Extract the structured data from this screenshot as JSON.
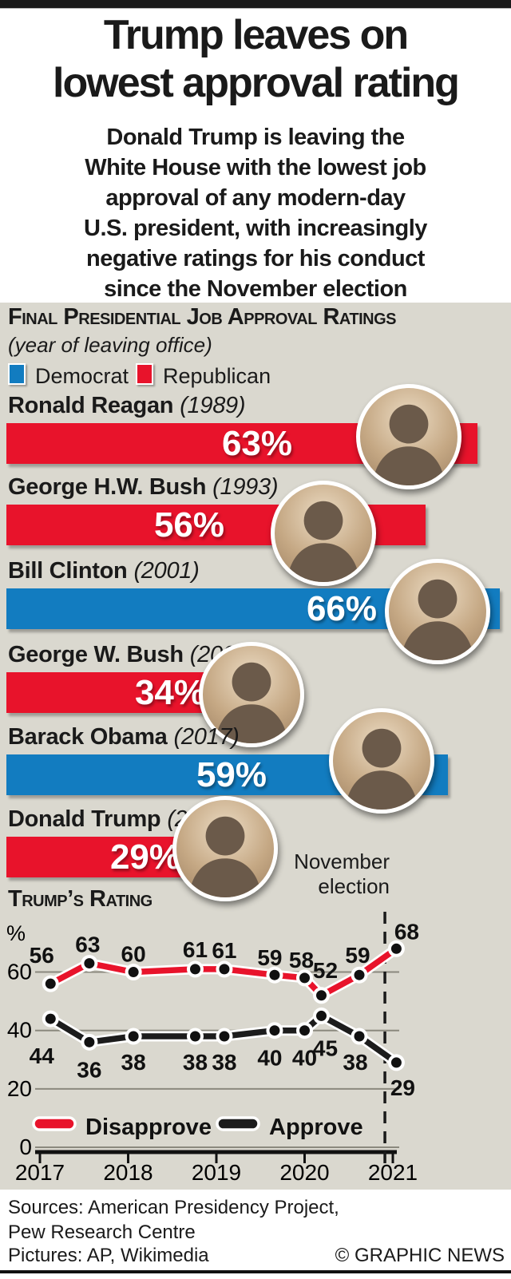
{
  "page": {
    "background": "#ffffff",
    "panel_bg": "#dad8cf",
    "accent_red": "#e8132b",
    "accent_blue": "#127cc0"
  },
  "masthead": {
    "title": "Trump leaves on\nlowest approval rating",
    "intro": "Donald Trump is leaving the\nWhite House with the lowest job\napproval of any modern-day\nU.S. president, with increasingly\nnegative ratings for his conduct\nsince the November election"
  },
  "panel": {
    "heading": "Final Presidential Job Approval Ratings",
    "subheading": "(year of leaving office)",
    "legend": [
      {
        "label": "Democrat",
        "color": "#127cc0"
      },
      {
        "label": "Republican",
        "color": "#e8132b"
      }
    ],
    "presidents": [
      {
        "name": "Ronald Reagan",
        "year": "(1989)",
        "party": "republican",
        "value": 63,
        "pct_label": "63%"
      },
      {
        "name": "George H.W. Bush",
        "year": "(1993)",
        "party": "republican",
        "value": 56,
        "pct_label": "56%"
      },
      {
        "name": "Bill Clinton",
        "year": "(2001)",
        "party": "democrat",
        "value": 66,
        "pct_label": "66%"
      },
      {
        "name": "George W. Bush",
        "year": "(2009)",
        "party": "republican",
        "value": 34,
        "pct_label": "34%"
      },
      {
        "name": "Barack Obama",
        "year": "(2017)",
        "party": "democrat",
        "value": 59,
        "pct_label": "59%"
      },
      {
        "name": "Donald Trump",
        "year": "(2021)",
        "party": "republican",
        "value": 29,
        "pct_label": "29%"
      }
    ]
  },
  "trend_heading": "Trump’s Rating",
  "chart_data": {
    "type": "line",
    "title": "Trump’s Rating",
    "xlabel": "",
    "ylabel": "%",
    "x": [
      2017.12,
      2017.56,
      2018.06,
      2018.76,
      2019.09,
      2019.66,
      2020.0,
      2020.19,
      2020.62,
      2021.04
    ],
    "series": [
      {
        "name": "Disapprove",
        "color": "#e8132b",
        "values": [
          56,
          63,
          60,
          61,
          61,
          59,
          58,
          52,
          59,
          68
        ],
        "label_offsets": [
          [
            -11,
            -26
          ],
          [
            -2,
            -14
          ],
          [
            0,
            -13
          ],
          [
            0,
            -15
          ],
          [
            0,
            -14
          ],
          [
            -6,
            -12
          ],
          [
            -4,
            -13
          ],
          [
            5,
            -22
          ],
          [
            -2,
            -15
          ],
          [
            13,
            -12
          ]
        ]
      },
      {
        "name": "Approve",
        "color": "#1c1c1c",
        "values": [
          44,
          36,
          38,
          38,
          38,
          40,
          40,
          45,
          38,
          29
        ],
        "label_offsets": [
          [
            -11,
            56
          ],
          [
            0,
            44
          ],
          [
            0,
            42
          ],
          [
            0,
            42
          ],
          [
            0,
            42
          ],
          [
            -6,
            44
          ],
          [
            0,
            44
          ],
          [
            5,
            50
          ],
          [
            -5,
            42
          ],
          [
            8,
            41
          ]
        ]
      }
    ],
    "yticks": [
      60,
      40,
      20,
      0
    ],
    "xticks": [
      2017,
      2018,
      2019,
      2020,
      2021
    ],
    "ylim": [
      0,
      77
    ],
    "grid": true,
    "legend_position": "bottom",
    "annotation": {
      "text": "November\nelection",
      "x": 2020.91
    }
  },
  "footer": {
    "sources": "Sources: American Presidency Project,\nPew Research Centre",
    "pictures": "Pictures: AP, Wikimedia",
    "credit": "© GRAPHIC NEWS"
  }
}
